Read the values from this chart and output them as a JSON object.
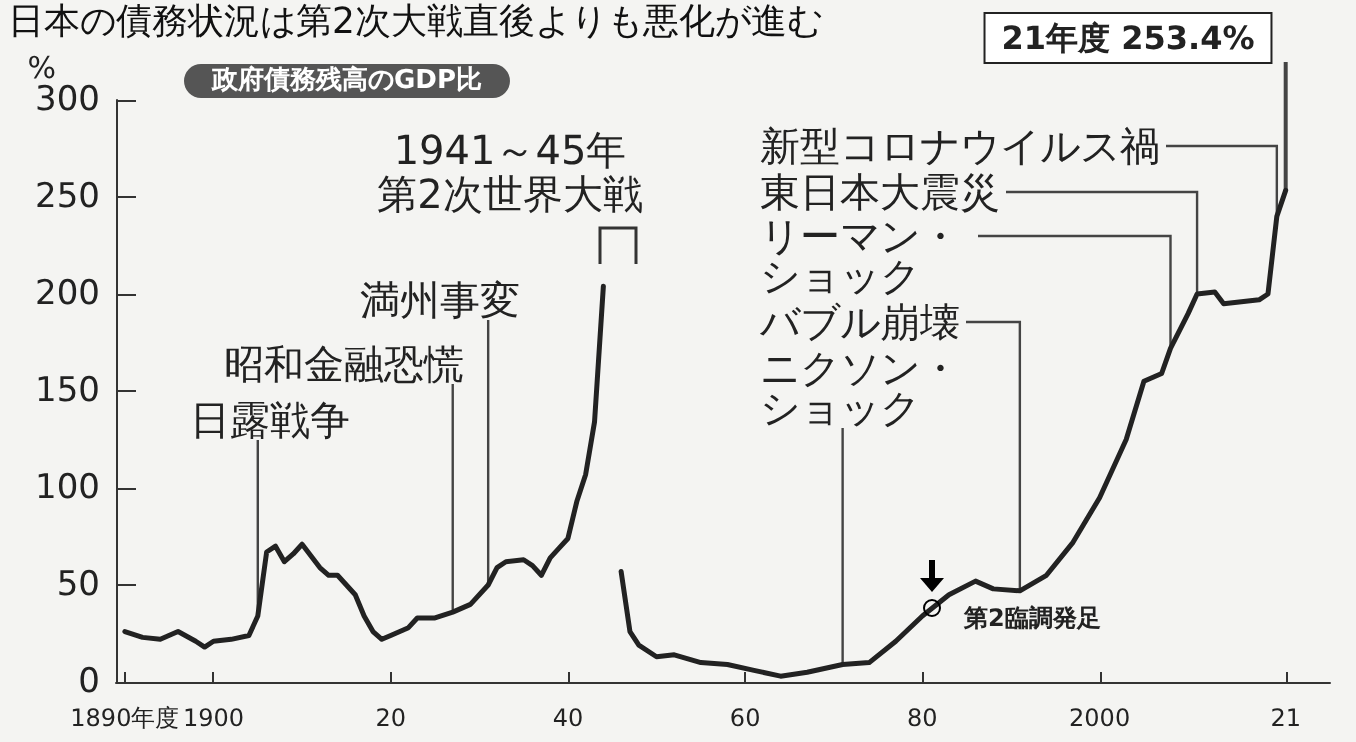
{
  "chart_data": {
    "type": "line",
    "title": "日本の債務状況は第2次大戦直後よりも悪化が進む",
    "subtitle": "政府債務残高のGDP比",
    "ylabel": "%",
    "x": [
      1890,
      1892,
      1894,
      1896,
      1898,
      1899,
      1900,
      1902,
      1904,
      1905,
      1906,
      1907,
      1908,
      1909,
      1910,
      1912,
      1913,
      1914,
      1916,
      1917,
      1918,
      1919,
      1920,
      1922,
      1923,
      1925,
      1927,
      1929,
      1931,
      1932,
      1933,
      1935,
      1936,
      1937,
      1938,
      1939,
      1940,
      1941,
      1942,
      1943,
      1944,
      1945,
      1946,
      1947,
      1948,
      1950,
      1952,
      1955,
      1958,
      1961,
      1964,
      1967,
      1971,
      1974,
      1977,
      1980,
      1983,
      1986,
      1988,
      1991,
      1994,
      1997,
      2000,
      2003,
      2005,
      2007,
      2008,
      2010,
      2011,
      2013,
      2014,
      2016,
      2018,
      2019,
      2020,
      2021
    ],
    "series": [
      {
        "color": "#222222",
        "values": [
          26,
          23,
          22,
          26,
          21,
          18,
          21,
          22,
          24,
          34,
          67,
          70,
          62,
          66,
          71,
          59,
          55,
          55,
          45,
          34,
          26,
          22,
          24,
          28,
          33,
          33,
          36,
          40,
          50,
          59,
          62,
          63,
          60,
          55,
          64,
          69,
          74,
          93,
          107,
          134,
          204,
          null,
          57,
          26,
          19,
          13,
          14,
          10,
          9,
          6,
          3,
          5,
          9,
          10,
          21,
          34,
          45,
          52,
          48,
          47,
          55,
          72,
          95,
          125,
          155,
          159,
          172,
          190,
          200,
          201,
          195,
          196,
          197,
          200,
          240,
          253.4
        ]
      }
    ],
    "xlim": [
      1889,
      2026
    ],
    "xticks": [
      {
        "value": 1890,
        "label": "1890年度"
      },
      {
        "value": 1900,
        "label": "1900"
      },
      {
        "value": 1920,
        "label": "20"
      },
      {
        "value": 1940,
        "label": "40"
      },
      {
        "value": 1960,
        "label": "60"
      },
      {
        "value": 1980,
        "label": "80"
      },
      {
        "value": 2000,
        "label": "2000"
      },
      {
        "value": 2021,
        "label": "21"
      }
    ],
    "ylim": [
      0,
      300
    ],
    "yticks": [
      0,
      50,
      100,
      150,
      200,
      250,
      300
    ],
    "marker": "none",
    "line_style": "solid",
    "annotations": [
      {
        "text": "日露戦争",
        "x": 1905,
        "y": 34
      },
      {
        "text": "昭和金融恐慌",
        "x": 1927,
        "y": 36
      },
      {
        "text": "満州事変",
        "x": 1931,
        "y": 50
      },
      "1941～45年",
      "第2次世界大戦",
      {
        "text": "ニクソン・ショック",
        "x": 1971,
        "y": 9
      },
      {
        "text": "バブル崩壊",
        "x": 1991,
        "y": 47
      },
      {
        "text": "リーマン・ショック",
        "x": 2008,
        "y": 172
      },
      {
        "text": "東日本大震災",
        "x": 2011,
        "y": 200
      },
      {
        "text": "新型コロナウイルス禍",
        "x": 2020,
        "y": 240
      },
      {
        "text": "21年度 253.4%",
        "x": 2021,
        "y": 253.4
      },
      {
        "text": "第2臨調発足",
        "x": 1981,
        "y": 38
      }
    ]
  }
}
